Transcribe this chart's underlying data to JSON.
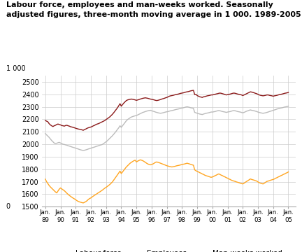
{
  "title_line1": "Labour force, employees and man-weeks worked. Seasonally",
  "title_line2": "adjusted figures, three-month moving average in 1 000. 1989-2005",
  "ylabel": "1 000",
  "ylim": [
    1500,
    2550
  ],
  "yticks": [
    1500,
    1600,
    1700,
    1800,
    1900,
    2000,
    2100,
    2200,
    2300,
    2400,
    2500
  ],
  "y0_label": "0",
  "start_year": 1989,
  "end_year": 2005,
  "labour_force": [
    2190,
    2185,
    2180,
    2165,
    2155,
    2148,
    2142,
    2148,
    2152,
    2158,
    2162,
    2158,
    2155,
    2150,
    2148,
    2145,
    2150,
    2152,
    2148,
    2145,
    2140,
    2138,
    2135,
    2132,
    2128,
    2125,
    2122,
    2120,
    2118,
    2115,
    2112,
    2118,
    2122,
    2128,
    2132,
    2135,
    2138,
    2142,
    2148,
    2152,
    2158,
    2162,
    2165,
    2170,
    2175,
    2180,
    2185,
    2190,
    2198,
    2205,
    2212,
    2220,
    2230,
    2240,
    2252,
    2265,
    2278,
    2292,
    2308,
    2325,
    2305,
    2318,
    2330,
    2340,
    2350,
    2355,
    2358,
    2360,
    2362,
    2360,
    2358,
    2355,
    2352,
    2355,
    2358,
    2362,
    2365,
    2368,
    2370,
    2372,
    2370,
    2368,
    2365,
    2362,
    2360,
    2358,
    2355,
    2352,
    2350,
    2352,
    2355,
    2358,
    2362,
    2365,
    2368,
    2372,
    2375,
    2380,
    2385,
    2388,
    2390,
    2392,
    2395,
    2398,
    2400,
    2402,
    2405,
    2408,
    2410,
    2412,
    2415,
    2418,
    2420,
    2422,
    2425,
    2428,
    2430,
    2432,
    2398,
    2400,
    2390,
    2385,
    2380,
    2378,
    2375,
    2380,
    2382,
    2385,
    2388,
    2390,
    2392,
    2395,
    2395,
    2398,
    2400,
    2403,
    2405,
    2408,
    2410,
    2408,
    2405,
    2402,
    2398,
    2395,
    2398,
    2400,
    2402,
    2405,
    2408,
    2410,
    2408,
    2405,
    2402,
    2400,
    2398,
    2395,
    2390,
    2395,
    2400,
    2405,
    2410,
    2415,
    2420,
    2418,
    2415,
    2412,
    2408,
    2405,
    2400,
    2395,
    2392,
    2390,
    2388,
    2390,
    2392,
    2395,
    2395,
    2392,
    2390,
    2388,
    2385,
    2388,
    2390,
    2392,
    2395,
    2398,
    2400,
    2402,
    2405,
    2408,
    2410,
    2412,
    2415
  ],
  "employees": [
    2085,
    2075,
    2065,
    2055,
    2042,
    2030,
    2020,
    2010,
    2005,
    2008,
    2012,
    2015,
    2010,
    2005,
    2000,
    1998,
    1995,
    1992,
    1988,
    1985,
    1982,
    1978,
    1975,
    1972,
    1968,
    1965,
    1962,
    1958,
    1955,
    1952,
    1950,
    1952,
    1955,
    1958,
    1962,
    1965,
    1968,
    1972,
    1975,
    1978,
    1982,
    1985,
    1988,
    1992,
    1995,
    1998,
    2005,
    2012,
    2020,
    2028,
    2038,
    2048,
    2058,
    2068,
    2080,
    2092,
    2105,
    2118,
    2132,
    2148,
    2135,
    2148,
    2162,
    2175,
    2188,
    2198,
    2205,
    2212,
    2218,
    2222,
    2225,
    2228,
    2230,
    2235,
    2240,
    2245,
    2250,
    2255,
    2258,
    2262,
    2265,
    2268,
    2270,
    2272,
    2268,
    2265,
    2262,
    2258,
    2255,
    2252,
    2250,
    2248,
    2250,
    2252,
    2255,
    2258,
    2260,
    2262,
    2265,
    2268,
    2270,
    2272,
    2275,
    2278,
    2280,
    2282,
    2285,
    2288,
    2290,
    2292,
    2295,
    2298,
    2300,
    2298,
    2295,
    2292,
    2290,
    2288,
    2255,
    2252,
    2248,
    2245,
    2242,
    2240,
    2238,
    2242,
    2245,
    2248,
    2250,
    2252,
    2255,
    2258,
    2258,
    2260,
    2262,
    2265,
    2268,
    2270,
    2268,
    2265,
    2262,
    2260,
    2258,
    2255,
    2258,
    2260,
    2262,
    2265,
    2268,
    2270,
    2268,
    2265,
    2262,
    2260,
    2258,
    2255,
    2252,
    2255,
    2260,
    2265,
    2268,
    2272,
    2275,
    2272,
    2270,
    2268,
    2265,
    2262,
    2258,
    2255,
    2252,
    2250,
    2248,
    2250,
    2252,
    2255,
    2258,
    2262,
    2265,
    2268,
    2272,
    2275,
    2278,
    2282,
    2285,
    2288,
    2290,
    2292,
    2295,
    2298,
    2300,
    2302,
    2305
  ],
  "man_weeks": [
    1720,
    1700,
    1685,
    1670,
    1658,
    1648,
    1638,
    1628,
    1618,
    1610,
    1625,
    1640,
    1650,
    1642,
    1635,
    1628,
    1618,
    1608,
    1598,
    1590,
    1582,
    1575,
    1568,
    1562,
    1555,
    1548,
    1542,
    1538,
    1535,
    1532,
    1530,
    1535,
    1540,
    1548,
    1558,
    1565,
    1570,
    1578,
    1585,
    1592,
    1598,
    1605,
    1612,
    1618,
    1625,
    1632,
    1640,
    1648,
    1655,
    1662,
    1670,
    1678,
    1688,
    1698,
    1712,
    1725,
    1740,
    1755,
    1770,
    1785,
    1765,
    1778,
    1792,
    1805,
    1818,
    1828,
    1838,
    1848,
    1855,
    1862,
    1868,
    1872,
    1858,
    1865,
    1870,
    1875,
    1872,
    1868,
    1862,
    1855,
    1848,
    1842,
    1838,
    1835,
    1838,
    1842,
    1848,
    1855,
    1858,
    1855,
    1852,
    1848,
    1844,
    1840,
    1836,
    1832,
    1828,
    1825,
    1822,
    1820,
    1818,
    1820,
    1822,
    1825,
    1828,
    1830,
    1832,
    1835,
    1838,
    1840,
    1842,
    1845,
    1848,
    1845,
    1842,
    1838,
    1835,
    1832,
    1795,
    1788,
    1782,
    1778,
    1772,
    1768,
    1762,
    1758,
    1752,
    1748,
    1745,
    1742,
    1738,
    1735,
    1738,
    1742,
    1748,
    1752,
    1758,
    1762,
    1758,
    1752,
    1748,
    1742,
    1738,
    1732,
    1728,
    1722,
    1718,
    1712,
    1708,
    1705,
    1702,
    1698,
    1695,
    1692,
    1688,
    1685,
    1682,
    1688,
    1695,
    1702,
    1708,
    1715,
    1722,
    1718,
    1715,
    1712,
    1708,
    1705,
    1698,
    1692,
    1688,
    1685,
    1682,
    1688,
    1695,
    1702,
    1705,
    1708,
    1712,
    1715,
    1718,
    1722,
    1728,
    1732,
    1738,
    1742,
    1748,
    1752,
    1758,
    1762,
    1768,
    1772,
    1778
  ],
  "colour_labour": "#8B1A1A",
  "colour_employees": "#BBBBBB",
  "colour_manweeks": "#FFA520",
  "background_color": "#ffffff",
  "grid_color": "#cccccc"
}
